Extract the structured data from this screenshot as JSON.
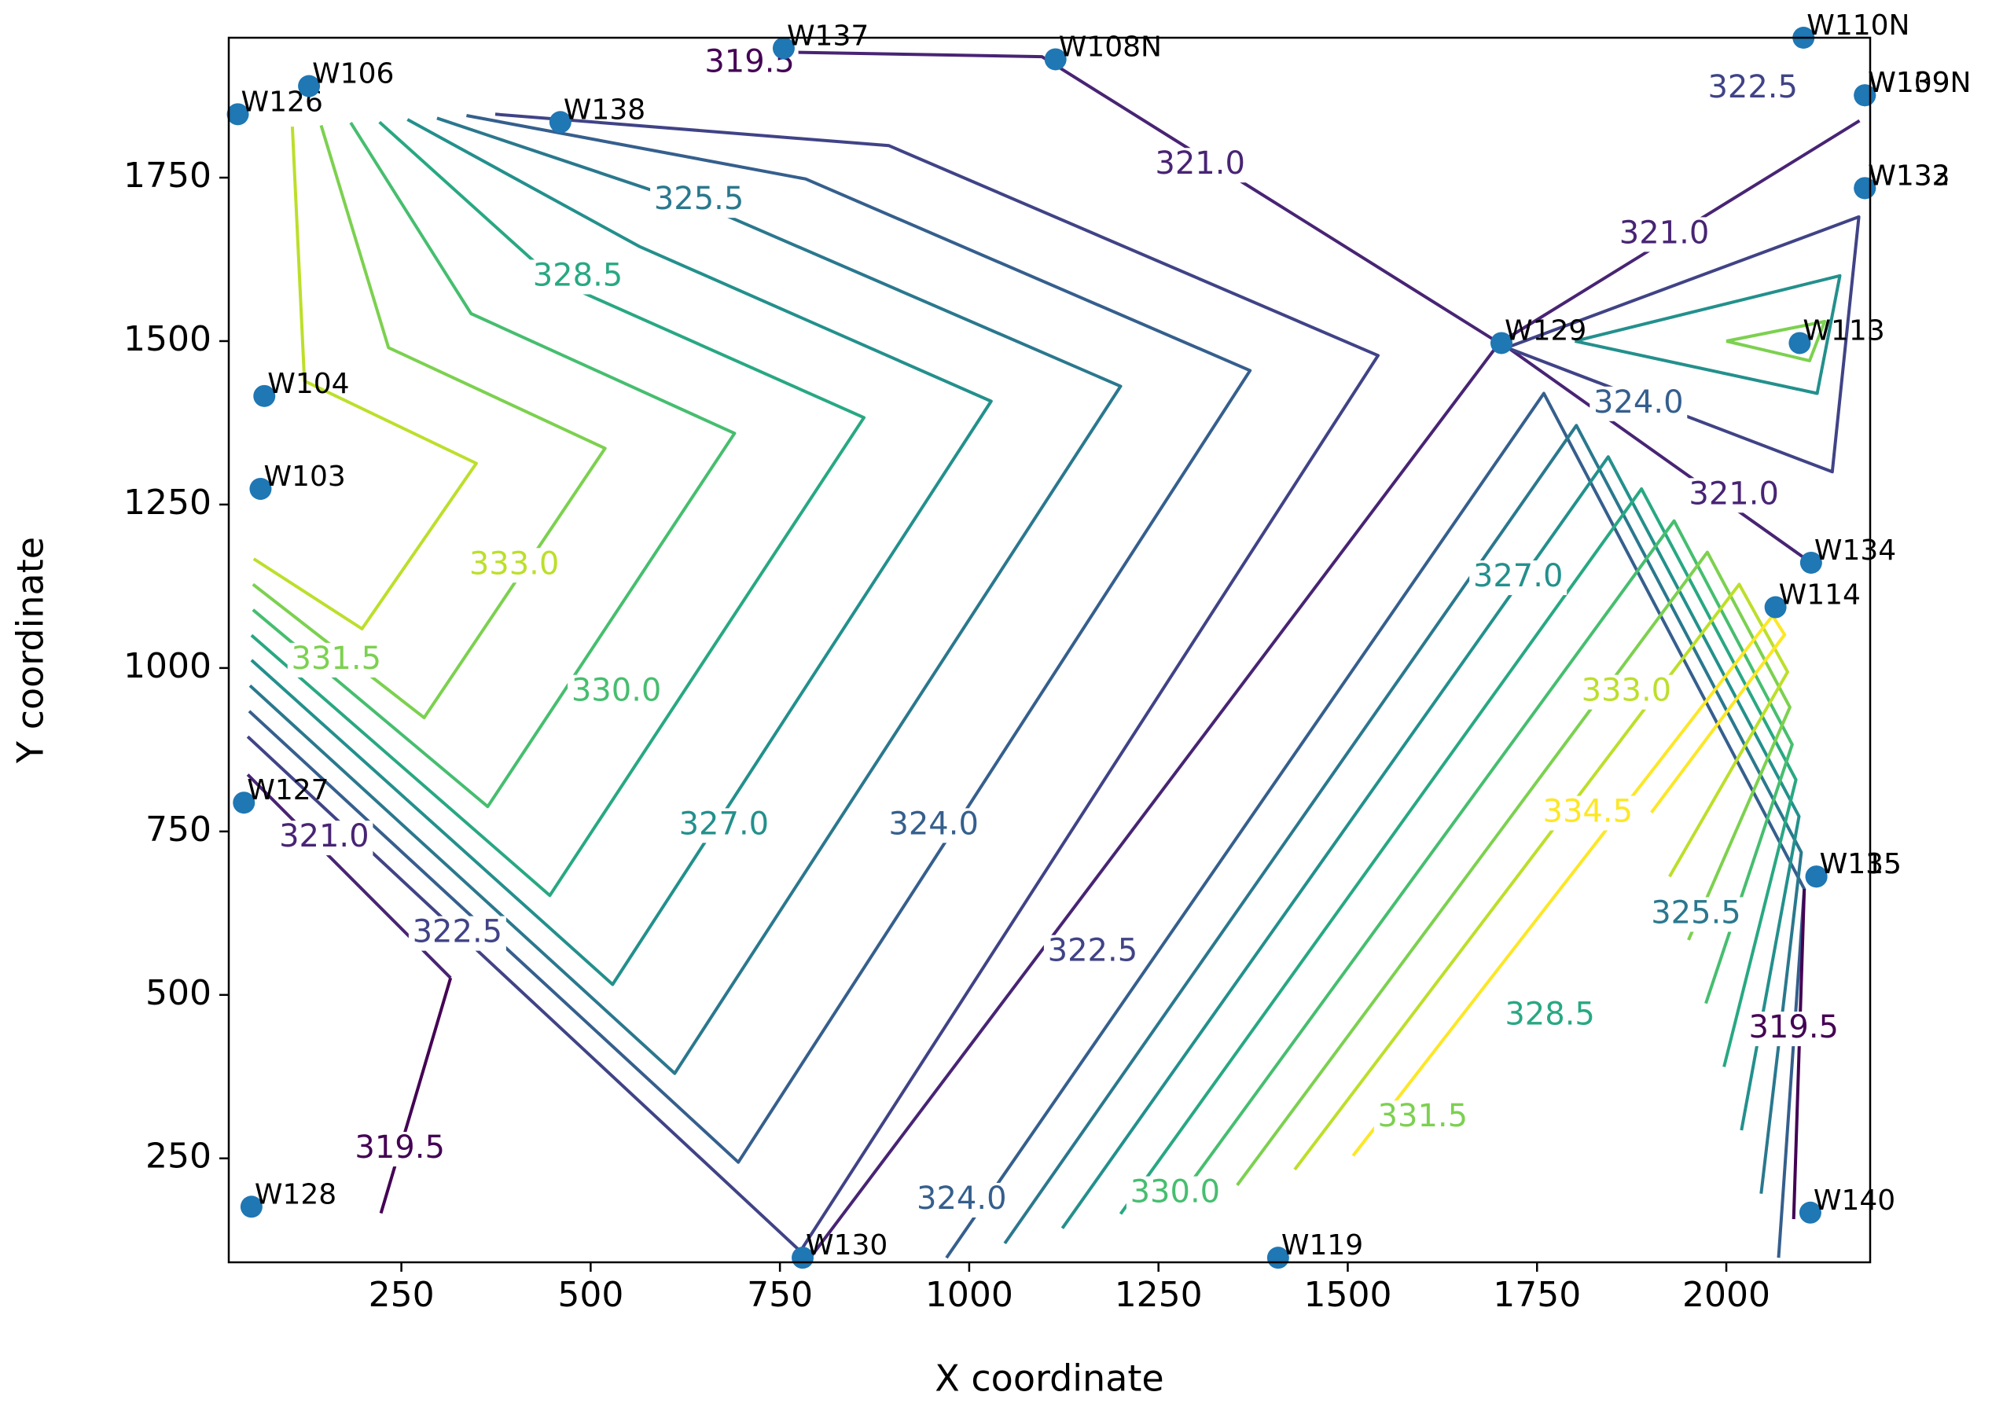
{
  "chart_data": {
    "type": "contour",
    "x_label": "X coordinate",
    "y_label": "Y coordinate",
    "xlim": [
      22,
      2190
    ],
    "ylim": [
      91,
      1964
    ],
    "xticks": [
      250,
      500,
      750,
      1000,
      1250,
      1500,
      1750,
      2000
    ],
    "yticks": [
      250,
      500,
      750,
      1000,
      1250,
      1500,
      1750
    ],
    "colormap": "viridis",
    "contours": [
      {
        "level": 322.5,
        "x": [
          374,
          894,
          1540,
          777,
          47
        ],
        "y": [
          1847,
          1799,
          1478,
          108,
          895
        ]
      },
      {
        "level": 324.0,
        "x": [
          336,
          784,
          1371,
          695,
          49
        ],
        "y": [
          1845,
          1748,
          1455,
          244,
          934
        ]
      },
      {
        "level": 325.5,
        "x": [
          297,
          673,
          1200,
          611,
          50
        ],
        "y": [
          1841,
          1695,
          1431,
          380,
          973
        ]
      },
      {
        "level": 327.0,
        "x": [
          258,
          564,
          1029,
          529,
          52
        ],
        "y": [
          1839,
          1645,
          1408,
          516,
          1012
        ]
      },
      {
        "level": 328.5,
        "x": [
          221,
          453,
          861,
          446,
          52
        ],
        "y": [
          1835,
          1593,
          1383,
          652,
          1050
        ]
      },
      {
        "level": 330.0,
        "x": [
          183,
          342,
          690,
          364,
          54
        ],
        "y": [
          1834,
          1542,
          1359,
          788,
          1089
        ]
      },
      {
        "level": 331.5,
        "x": [
          144,
          233,
          519,
          280,
          54
        ],
        "y": [
          1830,
          1490,
          1336,
          924,
          1128
        ]
      },
      {
        "level": 333.0,
        "x": [
          106,
          122,
          349,
          198,
          55
        ],
        "y": [
          1828,
          1439,
          1313,
          1060,
          1167
        ]
      },
      {
        "level": 324.0,
        "x": [
          970,
          1759,
          2103,
          2069
        ],
        "y": [
          98,
          1420,
          662,
          98
        ]
      },
      {
        "level": 325.5,
        "x": [
          1047,
          1802,
          2099,
          2046
        ],
        "y": [
          120,
          1371,
          718,
          196
        ]
      },
      {
        "level": 327.0,
        "x": [
          1123,
          1844,
          2096,
          2020
        ],
        "y": [
          143,
          1323,
          773,
          293
        ]
      },
      {
        "level": 328.5,
        "x": [
          1200,
          1888,
          2092,
          1997
        ],
        "y": [
          165,
          1274,
          829,
          390
        ]
      },
      {
        "level": 330.0,
        "x": [
          1277,
          1931,
          2087,
          1973
        ],
        "y": [
          188,
          1225,
          883,
          487
        ]
      },
      {
        "level": 331.5,
        "x": [
          1354,
          1975,
          2084,
          1950
        ],
        "y": [
          209,
          1177,
          940,
          584
        ]
      },
      {
        "level": 333.0,
        "x": [
          1430,
          2017,
          2081,
          1925
        ],
        "y": [
          233,
          1128,
          994,
          681
        ]
      },
      {
        "level": 334.5,
        "x": [
          1507,
          2061,
          2077,
          1901
        ],
        "y": [
          254,
          1080,
          1051,
          779
        ]
      },
      {
        "level": 321.0,
        "x": [
          660,
          1096,
          1700,
          2176
        ],
        "y": [
          1944,
          1935,
          1497,
          1837
        ]
      },
      {
        "level": 321.0,
        "x": [
          1700,
          790
        ],
        "y": [
          1497,
          98
        ]
      },
      {
        "level": 321.0,
        "x": [
          47,
          315
        ],
        "y": [
          837,
          526
        ]
      },
      {
        "level": 321.0,
        "x": [
          1703,
          2112
        ],
        "y": [
          1497,
          1161
        ]
      },
      {
        "level": 319.5,
        "x": [
          315,
          223
        ],
        "y": [
          526,
          166
        ]
      },
      {
        "level": 319.5,
        "x": [
          2103,
          2089
        ],
        "y": [
          662,
          157
        ]
      },
      {
        "level": 322.5,
        "x": [
          1710,
          2175,
          2140,
          1710
        ],
        "y": [
          1490,
          1690,
          1300,
          1490
        ]
      },
      {
        "level": 327.0,
        "x": [
          1800,
          2150,
          2120,
          1800
        ],
        "y": [
          1500,
          1600,
          1420,
          1500
        ]
      },
      {
        "level": 331.5,
        "x": [
          2000,
          2130,
          2110,
          2000
        ],
        "y": [
          1500,
          1530,
          1470,
          1500
        ]
      }
    ],
    "contour_labels": [
      {
        "level": {
          "value": 319.5,
          "label": "319.5"
        },
        "x": 710,
        "y": 1925
      },
      {
        "level": {
          "value": 322.5,
          "label": "322.5"
        },
        "x": 2035,
        "y": 1886
      },
      {
        "level": {
          "value": 321,
          "label": "321.0"
        },
        "x": 1305,
        "y": 1769
      },
      {
        "level": {
          "value": 325.5,
          "label": "325.5"
        },
        "x": 643,
        "y": 1715
      },
      {
        "level": {
          "value": 328.5,
          "label": "328.5"
        },
        "x": 483,
        "y": 1598
      },
      {
        "level": {
          "value": 321,
          "label": "321.0"
        },
        "x": 1918,
        "y": 1663
      },
      {
        "level": {
          "value": 324,
          "label": "324.0"
        },
        "x": 1884,
        "y": 1404
      },
      {
        "level": {
          "value": 321,
          "label": "321.0"
        },
        "x": 2010,
        "y": 1264
      },
      {
        "level": {
          "value": 333,
          "label": "333.0"
        },
        "x": 399,
        "y": 1157
      },
      {
        "level": {
          "value": 327,
          "label": "327.0"
        },
        "x": 1725,
        "y": 1138
      },
      {
        "level": {
          "value": 331.5,
          "label": "331.5"
        },
        "x": 164,
        "y": 1012
      },
      {
        "level": {
          "value": 330,
          "label": "330.0"
        },
        "x": 534,
        "y": 963
      },
      {
        "level": {
          "value": 333,
          "label": "333.0"
        },
        "x": 1868,
        "y": 963
      },
      {
        "level": {
          "value": 327,
          "label": "327.0"
        },
        "x": 676,
        "y": 759
      },
      {
        "level": {
          "value": 324,
          "label": "324.0"
        },
        "x": 953,
        "y": 759
      },
      {
        "level": {
          "value": 334.5,
          "label": "334.5"
        },
        "x": 1817,
        "y": 778
      },
      {
        "level": {
          "value": 321,
          "label": "321.0"
        },
        "x": 148,
        "y": 740
      },
      {
        "level": {
          "value": 322.5,
          "label": "322.5"
        },
        "x": 324,
        "y": 594
      },
      {
        "level": {
          "value": 325.5,
          "label": "325.5"
        },
        "x": 1960,
        "y": 623
      },
      {
        "level": {
          "value": 322.5,
          "label": "322.5"
        },
        "x": 1163,
        "y": 565
      },
      {
        "level": {
          "value": 319.5,
          "label": "319.5"
        },
        "x": 2089,
        "y": 448
      },
      {
        "level": {
          "value": 328.5,
          "label": "328.5"
        },
        "x": 1767,
        "y": 468
      },
      {
        "level": {
          "value": 331.5,
          "label": "331.5"
        },
        "x": 1599,
        "y": 312
      },
      {
        "level": {
          "value": 319.5,
          "label": "319.5"
        },
        "x": 248,
        "y": 264
      },
      {
        "level": {
          "value": 324,
          "label": "324.0"
        },
        "x": 990,
        "y": 186
      },
      {
        "level": {
          "value": 330,
          "label": "330.0"
        },
        "x": 1272,
        "y": 196
      }
    ],
    "wells": {
      "color": "#1f77b4",
      "names": [
        "W137",
        "W108N",
        "W110N",
        "W109N",
        "W139",
        "W126",
        "W106",
        "W138",
        "W133",
        "W132",
        "W129",
        "W113",
        "W104",
        "W103",
        "W134",
        "W114",
        "W127",
        "W115",
        "W135",
        "W128",
        "W130",
        "W119",
        "W140"
      ],
      "x": [
        755,
        1114,
        2102,
        2183,
        2183,
        34,
        128,
        460,
        2183,
        2183,
        1703,
        2097,
        69,
        64,
        2112,
        2065,
        42,
        2119,
        2119,
        52,
        780,
        1408,
        2111
      ],
      "y": [
        1948,
        1931,
        1964,
        1876,
        1876,
        1847,
        1890,
        1835,
        1734,
        1734,
        1497,
        1497,
        1416,
        1274,
        1161,
        1093,
        794,
        681,
        681,
        176,
        98,
        98,
        167
      ]
    }
  }
}
